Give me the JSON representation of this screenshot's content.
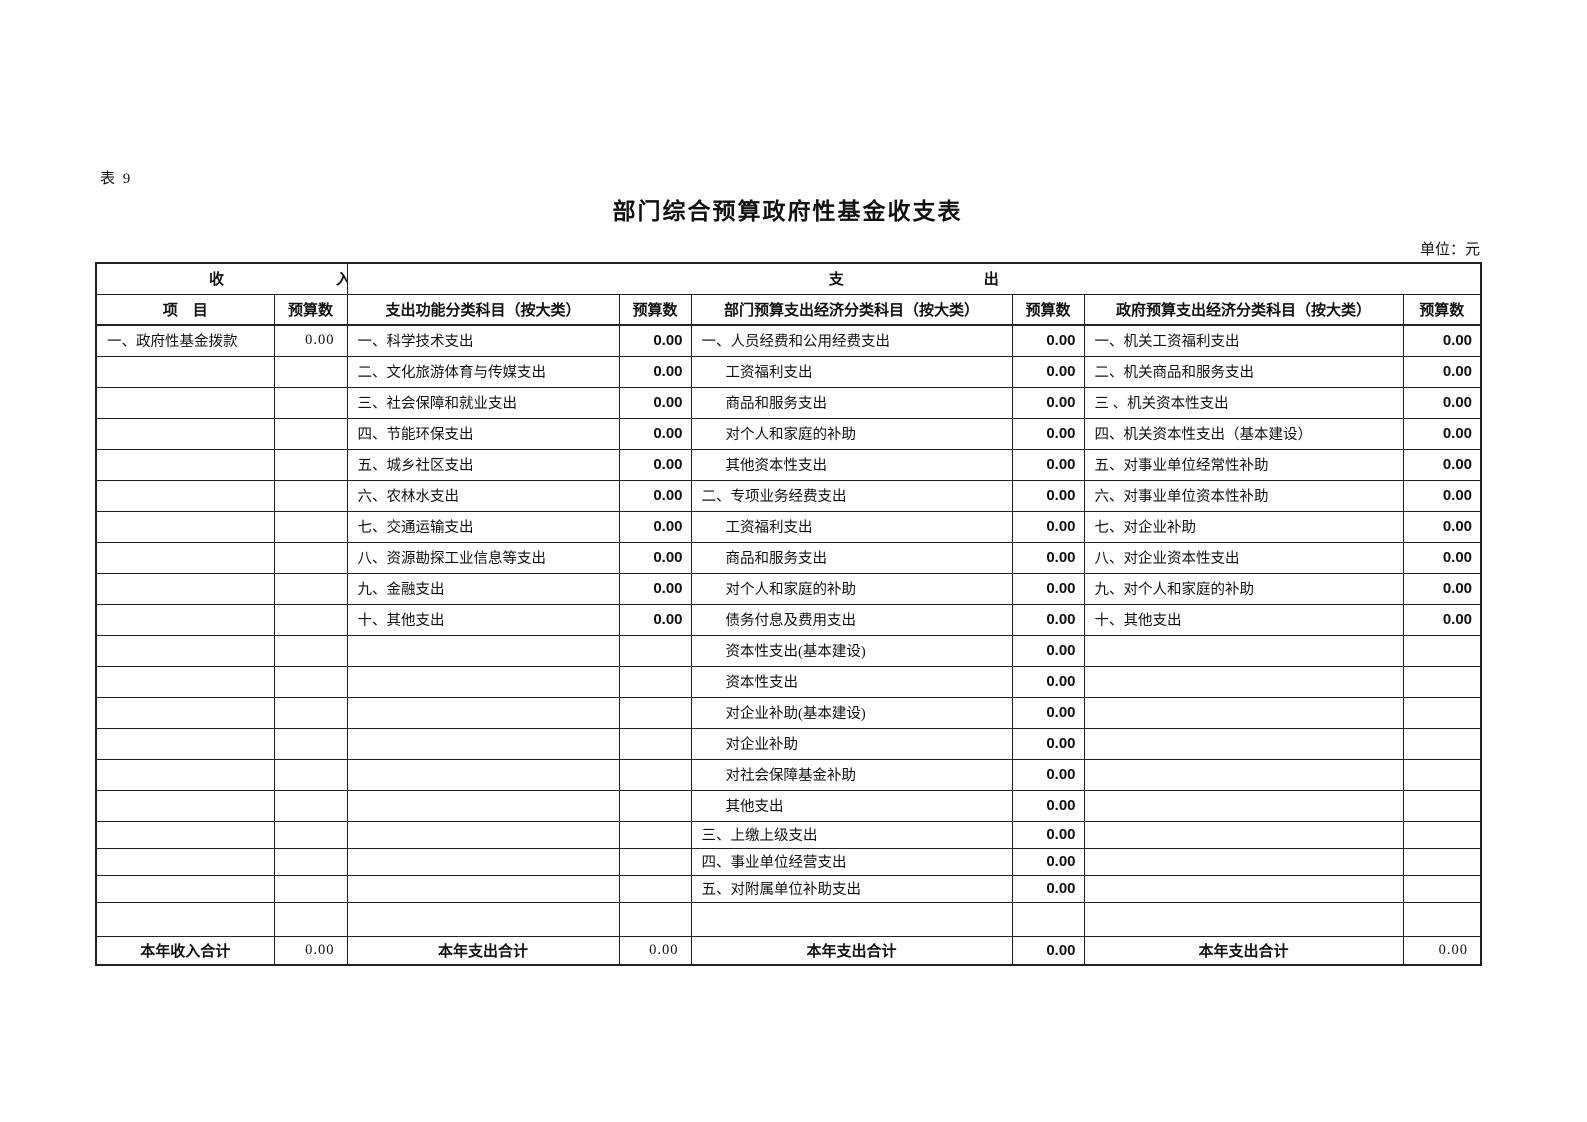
{
  "page": {
    "table_label": "表 9",
    "title": "部门综合预算政府性基金收支表",
    "unit_note": "单位：元"
  },
  "header": {
    "income_group": "收入",
    "expense_group": "支出",
    "col_item": "项　目",
    "col_budget": "预算数",
    "col_func": "支出功能分类科目（按大类）",
    "col_dept_econ": "部门预算支出经济分类科目（按大类）",
    "col_gov_econ": "政府预算支出经济分类科目（按大类）"
  },
  "rows": [
    {
      "income_label": "一、政府性基金拨款",
      "income_value": "0.00",
      "func_label": "一、科学技术支出",
      "func_value": "0.00",
      "dept_label": "一、人员经费和公用经费支出",
      "dept_indent": false,
      "dept_value": "0.00",
      "gov_label": "一、机关工资福利支出",
      "gov_value": "0.00"
    },
    {
      "income_label": "",
      "income_value": "",
      "func_label": "二、文化旅游体育与传媒支出",
      "func_value": "0.00",
      "dept_label": "工资福利支出",
      "dept_indent": true,
      "dept_value": "0.00",
      "gov_label": "二、机关商品和服务支出",
      "gov_value": "0.00"
    },
    {
      "income_label": "",
      "income_value": "",
      "func_label": "三、社会保障和就业支出",
      "func_value": "0.00",
      "dept_label": "商品和服务支出",
      "dept_indent": true,
      "dept_value": "0.00",
      "gov_label": "三 、机关资本性支出",
      "gov_value": "0.00"
    },
    {
      "income_label": "",
      "income_value": "",
      "func_label": "四、节能环保支出",
      "func_value": "0.00",
      "dept_label": "对个人和家庭的补助",
      "dept_indent": true,
      "dept_value": "0.00",
      "gov_label": "四、机关资本性支出（基本建设）",
      "gov_value": "0.00"
    },
    {
      "income_label": "",
      "income_value": "",
      "func_label": "五、城乡社区支出",
      "func_value": "0.00",
      "dept_label": "其他资本性支出",
      "dept_indent": true,
      "dept_value": "0.00",
      "gov_label": "五、对事业单位经常性补助",
      "gov_value": "0.00"
    },
    {
      "income_label": "",
      "income_value": "",
      "func_label": "六、农林水支出",
      "func_value": "0.00",
      "dept_label": "二、专项业务经费支出",
      "dept_indent": false,
      "dept_value": "0.00",
      "gov_label": "六、对事业单位资本性补助",
      "gov_value": "0.00"
    },
    {
      "income_label": "",
      "income_value": "",
      "func_label": "七、交通运输支出",
      "func_value": "0.00",
      "dept_label": "工资福利支出",
      "dept_indent": true,
      "dept_value": "0.00",
      "gov_label": "七、对企业补助",
      "gov_value": "0.00"
    },
    {
      "income_label": "",
      "income_value": "",
      "func_label": "八、资源勘探工业信息等支出",
      "func_value": "0.00",
      "dept_label": "商品和服务支出",
      "dept_indent": true,
      "dept_value": "0.00",
      "gov_label": "八、对企业资本性支出",
      "gov_value": "0.00"
    },
    {
      "income_label": "",
      "income_value": "",
      "func_label": "九、金融支出",
      "func_value": "0.00",
      "dept_label": "对个人和家庭的补助",
      "dept_indent": true,
      "dept_value": "0.00",
      "gov_label": "九、对个人和家庭的补助",
      "gov_value": "0.00"
    },
    {
      "income_label": "",
      "income_value": "",
      "func_label": "十、其他支出",
      "func_value": "0.00",
      "dept_label": "债务付息及费用支出",
      "dept_indent": true,
      "dept_value": "0.00",
      "gov_label": "十、其他支出",
      "gov_value": "0.00"
    },
    {
      "income_label": "",
      "income_value": "",
      "func_label": "",
      "func_value": "",
      "dept_label": "资本性支出(基本建设)",
      "dept_indent": true,
      "dept_value": "0.00",
      "gov_label": "",
      "gov_value": ""
    },
    {
      "income_label": "",
      "income_value": "",
      "func_label": "",
      "func_value": "",
      "dept_label": "资本性支出",
      "dept_indent": true,
      "dept_value": "0.00",
      "gov_label": "",
      "gov_value": ""
    },
    {
      "income_label": "",
      "income_value": "",
      "func_label": "",
      "func_value": "",
      "dept_label": "对企业补助(基本建设)",
      "dept_indent": true,
      "dept_value": "0.00",
      "gov_label": "",
      "gov_value": ""
    },
    {
      "income_label": "",
      "income_value": "",
      "func_label": "",
      "func_value": "",
      "dept_label": "对企业补助",
      "dept_indent": true,
      "dept_value": "0.00",
      "gov_label": "",
      "gov_value": ""
    },
    {
      "income_label": "",
      "income_value": "",
      "func_label": "",
      "func_value": "",
      "dept_label": "对社会保障基金补助",
      "dept_indent": true,
      "dept_value": "0.00",
      "gov_label": "",
      "gov_value": ""
    },
    {
      "income_label": "",
      "income_value": "",
      "func_label": "",
      "func_value": "",
      "dept_label": "其他支出",
      "dept_indent": true,
      "dept_value": "0.00",
      "gov_label": "",
      "gov_value": ""
    },
    {
      "income_label": "",
      "income_value": "",
      "func_label": "",
      "func_value": "",
      "dept_label": "三、上缴上级支出",
      "dept_indent": false,
      "dept_value": "0.00",
      "gov_label": "",
      "gov_value": ""
    },
    {
      "income_label": "",
      "income_value": "",
      "func_label": "",
      "func_value": "",
      "dept_label": "四、事业单位经营支出",
      "dept_indent": false,
      "dept_value": "0.00",
      "gov_label": "",
      "gov_value": ""
    },
    {
      "income_label": "",
      "income_value": "",
      "func_label": "",
      "func_value": "",
      "dept_label": "五、对附属单位补助支出",
      "dept_indent": false,
      "dept_value": "0.00",
      "gov_label": "",
      "gov_value": ""
    },
    {
      "income_label": "",
      "income_value": "",
      "func_label": "",
      "func_value": "",
      "dept_label": "",
      "dept_indent": false,
      "dept_value": "",
      "gov_label": "",
      "gov_value": ""
    }
  ],
  "totals": {
    "income_label": "本年收入合计",
    "income_value": "0.00",
    "func_label": "本年支出合计",
    "func_value": "0.00",
    "dept_label": "本年支出合计",
    "dept_value": "0.00",
    "gov_label": "本年支出合计",
    "gov_value": "0.00"
  }
}
